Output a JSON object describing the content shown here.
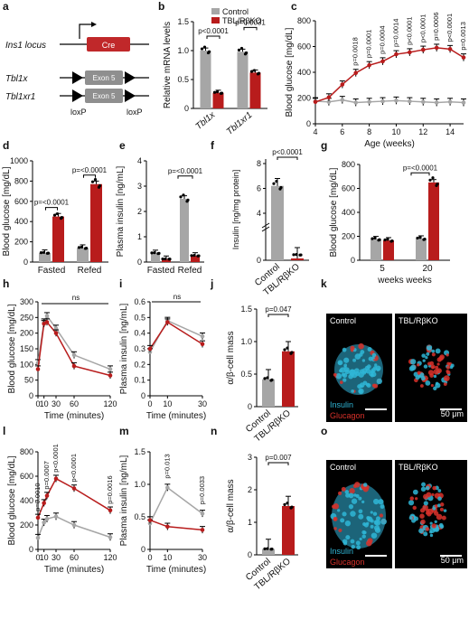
{
  "colors": {
    "control": "#a6a6a6",
    "ko": "#b81c1c",
    "cre": "#c0282a",
    "exon": "#8f8f8f",
    "insulin": "#2fb6d6",
    "glucagon": "#d8312a"
  },
  "panel_letters": [
    "a",
    "b",
    "c",
    "d",
    "e",
    "f",
    "g",
    "h",
    "i",
    "j",
    "k",
    "l",
    "m",
    "n",
    "o"
  ],
  "panel_a": {
    "ins1_label": "Ins1 locus",
    "cre_label": "Cre",
    "tbl1x_label": "Tbl1x",
    "tbl1xr1_label": "Tbl1xr1",
    "exon_label": "Exon 5",
    "loxp_label": "loxP"
  },
  "legend": {
    "control": "Control",
    "ko": "TBL/RβKO"
  },
  "groups": [
    "Control",
    "TBL/RβKO"
  ],
  "micrographs": {
    "k": {
      "left_title": "Control",
      "right_title": "TBL/RβKO",
      "insulin": "Insulin",
      "glucagon": "Glucagon",
      "scale": "50 μm"
    },
    "o": {
      "left_title": "Control",
      "right_title": "TBL/RβKO",
      "insulin": "Insulin",
      "glucagon": "Glucagon",
      "scale": "50 μm"
    }
  },
  "chart_data": [
    {
      "panel": "b",
      "type": "bar",
      "ylabel": "Relative mRNA levels",
      "ylim": [
        0,
        1.5
      ],
      "yticks": [
        0,
        0.5,
        1.0,
        1.5
      ],
      "categories": [
        "Tbl1x",
        "Tbl1xr1"
      ],
      "series": [
        {
          "name": "Control",
          "values": [
            1.0,
            0.98
          ]
        },
        {
          "name": "TBL/RβKO",
          "values": [
            0.27,
            0.62
          ]
        }
      ],
      "pvalues": [
        "p<0.0001",
        "p=0.0031"
      ]
    },
    {
      "panel": "c",
      "type": "line",
      "xlabel": "Age (weeks)",
      "ylabel": "Blood glucose [mg/dL]",
      "xlim": [
        4,
        15
      ],
      "ylim": [
        0,
        800
      ],
      "xticks": [
        4,
        6,
        8,
        10,
        12,
        14
      ],
      "yticks": [
        0,
        200,
        400,
        600,
        800
      ],
      "x": [
        4,
        5,
        6,
        7,
        8,
        9,
        10,
        11,
        12,
        13,
        14,
        15
      ],
      "series": [
        {
          "name": "Control",
          "values": [
            175,
            170,
            185,
            165,
            170,
            175,
            180,
            175,
            170,
            165,
            170,
            165
          ]
        },
        {
          "name": "TBL/RβKO",
          "values": [
            170,
            205,
            305,
            395,
            455,
            485,
            540,
            555,
            575,
            590,
            580,
            515
          ]
        }
      ],
      "pvalues": [
        "p=0.0018",
        "p=0.0001",
        "p=0.0004",
        "p=0.0014",
        "p<0.0001",
        "p<0.0001",
        "p=0.0006",
        "p<0.0001",
        "p=0.0013"
      ]
    },
    {
      "panel": "d",
      "type": "bar",
      "ylabel": "Blood glucose [mg/dL]",
      "ylim": [
        0,
        1000
      ],
      "yticks": [
        0,
        200,
        400,
        600,
        800,
        1000
      ],
      "categories": [
        "Fasted",
        "Refed"
      ],
      "series": [
        {
          "name": "Control",
          "values": [
            90,
            140
          ]
        },
        {
          "name": "TBL/RβKO",
          "values": [
            450,
            770
          ]
        }
      ],
      "pvalues": [
        "p=<0.0001",
        "p=<0.0001"
      ]
    },
    {
      "panel": "e",
      "type": "bar",
      "ylabel": "Plasma insulin [ng/mL]",
      "ylim": [
        0,
        4
      ],
      "yticks": [
        0,
        1,
        2,
        3,
        4
      ],
      "categories": [
        "Fasted",
        "Refed"
      ],
      "series": [
        {
          "name": "Control",
          "values": [
            0.35,
            2.5
          ]
        },
        {
          "name": "TBL/RβKO",
          "values": [
            0.12,
            0.25
          ]
        }
      ],
      "pvalues": [
        "p=<0.0001"
      ]
    },
    {
      "panel": "f",
      "type": "bar",
      "ylabel": "Insulin [ng/mg protein]",
      "yticks": [
        0,
        2,
        4,
        6,
        8
      ],
      "categories": [
        "Control",
        "TBL/RβKO"
      ],
      "series": [
        {
          "name": "values",
          "values": [
            6.2,
            0.1
          ]
        }
      ],
      "pvalues": [
        "p<0.0001"
      ]
    },
    {
      "panel": "g",
      "type": "bar",
      "ylabel": "Blood glucose [mg/dL]",
      "ylim": [
        0,
        800
      ],
      "yticks": [
        0,
        200,
        400,
        600,
        800
      ],
      "categories": [
        "5 weeks",
        "20 weeks"
      ],
      "category_labels": [
        "5",
        "20"
      ],
      "xlabel": "weeks weeks",
      "series": [
        {
          "name": "Control",
          "values": [
            175,
            180
          ]
        },
        {
          "name": "TBL/RβKO",
          "values": [
            165,
            650
          ]
        }
      ],
      "pvalues": [
        "p=<0.0001"
      ]
    },
    {
      "panel": "h",
      "type": "line",
      "xlabel": "Time (minutes)",
      "ylabel": "Blood glucose [mg/dL]",
      "xlim": [
        0,
        120
      ],
      "ylim": [
        0,
        300
      ],
      "xticks": [
        0,
        10,
        30,
        60,
        120
      ],
      "yticks": [
        0,
        50,
        100,
        150,
        200,
        250,
        300
      ],
      "x": [
        0,
        10,
        15,
        30,
        60,
        120
      ],
      "series": [
        {
          "name": "Control",
          "values": [
            105,
            235,
            255,
            215,
            130,
            85
          ]
        },
        {
          "name": "TBL/RβKO",
          "values": [
            85,
            230,
            235,
            200,
            95,
            65
          ]
        }
      ],
      "pvalues": [
        "ns"
      ]
    },
    {
      "panel": "i",
      "type": "line",
      "ylabel": "Plasma insulin [ng/mL]",
      "xlabel": "Time (minutes)",
      "xlim": [
        0,
        30
      ],
      "ylim": [
        0,
        0.6
      ],
      "xticks": [
        0,
        10,
        30
      ],
      "yticks": [
        0,
        0.1,
        0.2,
        0.3,
        0.4,
        0.5,
        0.6
      ],
      "x": [
        0,
        10,
        30
      ],
      "series": [
        {
          "name": "Control",
          "values": [
            0.28,
            0.48,
            0.38
          ]
        },
        {
          "name": "TBL/RβKO",
          "values": [
            0.3,
            0.47,
            0.33
          ]
        }
      ],
      "pvalues": [
        "ns"
      ]
    },
    {
      "panel": "j",
      "type": "bar",
      "ylabel": "α/β-cell mass",
      "ylim": [
        0,
        1.5
      ],
      "yticks": [
        0,
        0.5,
        1.0,
        1.5
      ],
      "categories": [
        "Control",
        "TBL/RβKO"
      ],
      "series": [
        {
          "name": "values",
          "values": [
            0.42,
            0.85
          ]
        }
      ],
      "pvalues": [
        "p=0.047"
      ]
    },
    {
      "panel": "l",
      "type": "line",
      "xlabel": "Time (minutes)",
      "ylabel": "Blood glucose [mg/dL]",
      "xlim": [
        0,
        120
      ],
      "ylim": [
        0,
        800
      ],
      "xticks": [
        0,
        10,
        30,
        60,
        120
      ],
      "yticks": [
        0,
        200,
        400,
        600,
        800
      ],
      "x": [
        0,
        10,
        15,
        30,
        60,
        120
      ],
      "series": [
        {
          "name": "Control",
          "values": [
            95,
            220,
            250,
            270,
            200,
            100
          ]
        },
        {
          "name": "TBL/RβKO",
          "values": [
            260,
            380,
            440,
            580,
            500,
            320
          ]
        }
      ],
      "pvalues": [
        "p=0.0010",
        "p=0.0007",
        "p<0.0001",
        "p<0.0001",
        "p=0.0016"
      ]
    },
    {
      "panel": "m",
      "type": "line",
      "xlabel": "Time (minutes)",
      "ylabel": "Plasma insulin [ng/mL]",
      "xlim": [
        0,
        30
      ],
      "ylim": [
        0,
        1.5
      ],
      "xticks": [
        0,
        10,
        30
      ],
      "yticks": [
        0,
        0.5,
        1.0,
        1.5
      ],
      "x": [
        0,
        10,
        30
      ],
      "series": [
        {
          "name": "Control",
          "values": [
            0.4,
            0.95,
            0.55
          ]
        },
        {
          "name": "TBL/RβKO",
          "values": [
            0.45,
            0.35,
            0.3
          ]
        }
      ],
      "pvalues": [
        "p=0.013",
        "p=0.0033"
      ]
    },
    {
      "panel": "n",
      "type": "bar",
      "ylabel": "α/β-cell mass",
      "ylim": [
        0,
        3
      ],
      "yticks": [
        0,
        1,
        2,
        3
      ],
      "categories": [
        "Control",
        "TBL/RβKO"
      ],
      "series": [
        {
          "name": "values",
          "values": [
            0.18,
            1.5
          ]
        }
      ],
      "pvalues": [
        "p=0.007"
      ]
    }
  ]
}
